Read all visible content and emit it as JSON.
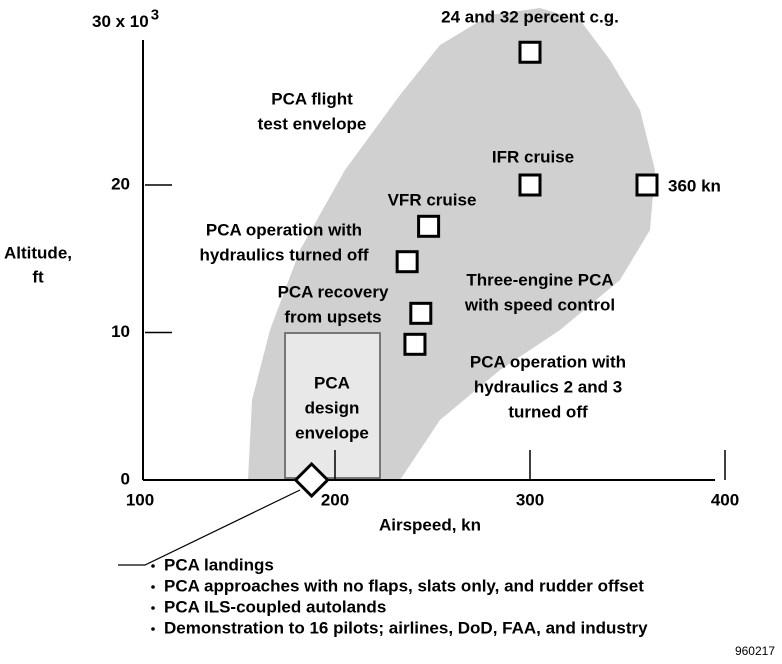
{
  "chart_data": {
    "type": "scatter",
    "xlim": [
      100,
      400
    ],
    "ylim": [
      0,
      30
    ],
    "xticks": [
      100,
      200,
      300,
      400
    ],
    "yticks": [
      0,
      10,
      20,
      {
        "value": 30,
        "label": "30 x 10"
      }
    ],
    "ytick_exponent": "3",
    "xlabel": "Airspeed, kn",
    "ylabel": [
      "Altitude,",
      "ft"
    ],
    "x": [
      300,
      300,
      360,
      248,
      237,
      244,
      241,
      188
    ],
    "values": [
      29,
      20,
      20,
      17.2,
      14.8,
      11.3,
      9.2,
      0
    ],
    "markers": [
      "square",
      "square",
      "square",
      "square",
      "square",
      "square",
      "square",
      "diamond"
    ],
    "annotations": [
      [
        "24 and 32 percent c.g."
      ],
      [
        "PCA flight",
        "test envelope"
      ],
      [
        "IFR cruise"
      ],
      [
        "360 kn"
      ],
      [
        "VFR cruise"
      ],
      [
        "PCA operation with",
        "hydraulics turned off"
      ],
      [
        "Three-engine PCA",
        "with speed control"
      ],
      [
        "PCA recovery",
        "from upsets"
      ],
      [
        "PCA operation with",
        "hydraulics 2 and 3",
        "turned off"
      ],
      [
        "PCA",
        "design",
        "envelope"
      ]
    ],
    "notes": [
      "PCA landings",
      "PCA approaches with no flaps, slats only, and rudder offset",
      "PCA ILS-coupled autolands",
      "Demonstration to 16 pilots; airlines, DoD, FAA, and industry"
    ],
    "figure_id": "960217"
  }
}
